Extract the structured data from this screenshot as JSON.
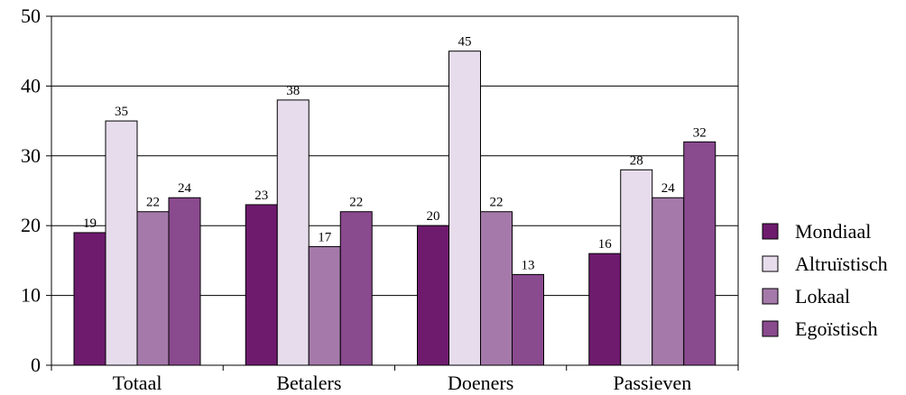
{
  "chart_data": {
    "type": "bar",
    "categories": [
      "Totaal",
      "Betalers",
      "Doeners",
      "Passieven"
    ],
    "series": [
      {
        "name": "Mondiaal",
        "values": [
          19,
          23,
          20,
          16
        ],
        "color": "#6e1b6e"
      },
      {
        "name": "Altruïstisch",
        "values": [
          35,
          38,
          45,
          28
        ],
        "color": "#e6dcec"
      },
      {
        "name": "Lokaal",
        "values": [
          22,
          17,
          22,
          24
        ],
        "color": "#a57aaa"
      },
      {
        "name": "Egoïstisch",
        "values": [
          24,
          22,
          13,
          32
        ],
        "color": "#8a4a8e"
      }
    ],
    "ylim": [
      0,
      50
    ],
    "yticks": [
      0,
      10,
      20,
      30,
      40,
      50
    ],
    "grid": true,
    "legend_position": "right",
    "title": "",
    "xlabel": "",
    "ylabel": ""
  }
}
